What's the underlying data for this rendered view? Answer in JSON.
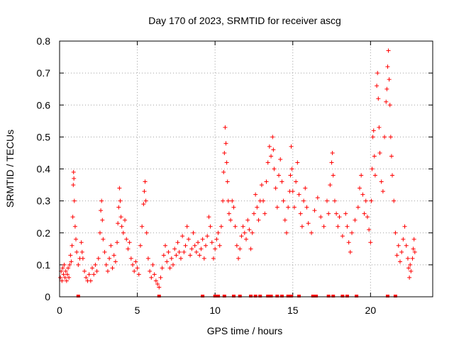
{
  "chart_data": {
    "type": "scatter",
    "title": "Day 170 of 2023, SRMTID for receiver ascg",
    "xlabel": "GPS time / hours",
    "ylabel": "SRMTID / TECUs",
    "xlim": [
      0,
      24
    ],
    "ylim": [
      0,
      0.8
    ],
    "xticks": [
      0,
      5,
      10,
      15,
      20
    ],
    "xtick_labels": [
      "0",
      "5",
      "10",
      "15",
      "20"
    ],
    "yticks": [
      0,
      0.1,
      0.2,
      0.3,
      0.4,
      0.5,
      0.6,
      0.7,
      0.8
    ],
    "ytick_labels": [
      "0",
      "0.1",
      "0.2",
      "0.3",
      "0.4",
      "0.5",
      "0.6",
      "0.7",
      "0.8"
    ],
    "grid": true,
    "marker": "+",
    "color": "#ff0000",
    "series": [
      {
        "name": "SRMTID",
        "points": [
          [
            0.05,
            0.06
          ],
          [
            0.1,
            0.08
          ],
          [
            0.15,
            0.05
          ],
          [
            0.2,
            0.09
          ],
          [
            0.25,
            0.07
          ],
          [
            0.3,
            0.1
          ],
          [
            0.35,
            0.06
          ],
          [
            0.4,
            0.08
          ],
          [
            0.45,
            0.05
          ],
          [
            0.5,
            0.07
          ],
          [
            0.55,
            0.09
          ],
          [
            0.6,
            0.06
          ],
          [
            0.65,
            0.1
          ],
          [
            0.7,
            0.13
          ],
          [
            0.75,
            0.11
          ],
          [
            0.8,
            0.16
          ],
          [
            0.85,
            0.25
          ],
          [
            0.88,
            0.35
          ],
          [
            0.9,
            0.39
          ],
          [
            0.92,
            0.37
          ],
          [
            0.95,
            0.3
          ],
          [
            1.0,
            0.22
          ],
          [
            1.05,
            0.18
          ],
          [
            1.1,
            0.14
          ],
          [
            1.2,
            0.1
          ],
          [
            1.3,
            0.12
          ],
          [
            1.4,
            0.17
          ],
          [
            1.45,
            0.14
          ],
          [
            1.5,
            0.12
          ],
          [
            1.6,
            0.08
          ],
          [
            1.7,
            0.06
          ],
          [
            1.8,
            0.05
          ],
          [
            1.9,
            0.07
          ],
          [
            2.0,
            0.05
          ],
          [
            2.1,
            0.09
          ],
          [
            2.2,
            0.07
          ],
          [
            2.3,
            0.1
          ],
          [
            2.4,
            0.08
          ],
          [
            2.5,
            0.12
          ],
          [
            2.6,
            0.2
          ],
          [
            2.65,
            0.27
          ],
          [
            2.7,
            0.3
          ],
          [
            2.75,
            0.24
          ],
          [
            2.8,
            0.18
          ],
          [
            2.9,
            0.14
          ],
          [
            3.0,
            0.1
          ],
          [
            3.1,
            0.08
          ],
          [
            3.2,
            0.12
          ],
          [
            3.3,
            0.16
          ],
          [
            3.4,
            0.09
          ],
          [
            3.5,
            0.13
          ],
          [
            3.6,
            0.11
          ],
          [
            3.7,
            0.17
          ],
          [
            3.75,
            0.23
          ],
          [
            3.8,
            0.28
          ],
          [
            3.85,
            0.34
          ],
          [
            3.9,
            0.3
          ],
          [
            3.95,
            0.25
          ],
          [
            4.0,
            0.22
          ],
          [
            4.1,
            0.2
          ],
          [
            4.2,
            0.24
          ],
          [
            4.3,
            0.18
          ],
          [
            4.4,
            0.15
          ],
          [
            4.5,
            0.17
          ],
          [
            4.6,
            0.12
          ],
          [
            4.7,
            0.1
          ],
          [
            4.8,
            0.08
          ],
          [
            4.9,
            0.11
          ],
          [
            5.0,
            0.09
          ],
          [
            5.1,
            0.07
          ],
          [
            5.2,
            0.16
          ],
          [
            5.3,
            0.22
          ],
          [
            5.4,
            0.29
          ],
          [
            5.45,
            0.33
          ],
          [
            5.5,
            0.36
          ],
          [
            5.55,
            0.3
          ],
          [
            5.6,
            0.2
          ],
          [
            5.7,
            0.12
          ],
          [
            5.8,
            0.08
          ],
          [
            5.9,
            0.06
          ],
          [
            6.0,
            0.1
          ],
          [
            6.1,
            0.07
          ],
          [
            6.2,
            0.05
          ],
          [
            6.3,
            0.04
          ],
          [
            6.4,
            0.03
          ],
          [
            6.5,
            0.06
          ],
          [
            6.6,
            0.09
          ],
          [
            6.7,
            0.13
          ],
          [
            6.8,
            0.16
          ],
          [
            6.9,
            0.11
          ],
          [
            7.0,
            0.14
          ],
          [
            7.1,
            0.09
          ],
          [
            7.2,
            0.12
          ],
          [
            7.3,
            0.1
          ],
          [
            7.4,
            0.15
          ],
          [
            7.5,
            0.13
          ],
          [
            7.6,
            0.17
          ],
          [
            7.7,
            0.14
          ],
          [
            7.8,
            0.12
          ],
          [
            7.9,
            0.19
          ],
          [
            8.0,
            0.14
          ],
          [
            8.1,
            0.16
          ],
          [
            8.2,
            0.22
          ],
          [
            8.3,
            0.18
          ],
          [
            8.4,
            0.13
          ],
          [
            8.5,
            0.15
          ],
          [
            8.6,
            0.2
          ],
          [
            8.7,
            0.16
          ],
          [
            8.8,
            0.14
          ],
          [
            8.9,
            0.17
          ],
          [
            9.0,
            0.13
          ],
          [
            9.1,
            0.15
          ],
          [
            9.2,
            0.18
          ],
          [
            9.3,
            0.12
          ],
          [
            9.4,
            0.16
          ],
          [
            9.5,
            0.19
          ],
          [
            9.6,
            0.25
          ],
          [
            9.7,
            0.22
          ],
          [
            9.8,
            0.17
          ],
          [
            9.9,
            0.12
          ],
          [
            10.0,
            0.15
          ],
          [
            10.1,
            0.18
          ],
          [
            10.2,
            0.2
          ],
          [
            10.3,
            0.16
          ],
          [
            10.4,
            0.22
          ],
          [
            10.5,
            0.3
          ],
          [
            10.55,
            0.39
          ],
          [
            10.6,
            0.45
          ],
          [
            10.65,
            0.53
          ],
          [
            10.7,
            0.48
          ],
          [
            10.75,
            0.42
          ],
          [
            10.8,
            0.36
          ],
          [
            10.85,
            0.3
          ],
          [
            10.9,
            0.26
          ],
          [
            11.0,
            0.24
          ],
          [
            11.1,
            0.3
          ],
          [
            11.2,
            0.28
          ],
          [
            11.3,
            0.22
          ],
          [
            11.4,
            0.16
          ],
          [
            11.5,
            0.12
          ],
          [
            11.6,
            0.15
          ],
          [
            11.7,
            0.19
          ],
          [
            11.8,
            0.22
          ],
          [
            11.9,
            0.2
          ],
          [
            12.0,
            0.18
          ],
          [
            12.1,
            0.24
          ],
          [
            12.2,
            0.21
          ],
          [
            12.3,
            0.15
          ],
          [
            12.4,
            0.2
          ],
          [
            12.5,
            0.26
          ],
          [
            12.6,
            0.32
          ],
          [
            12.7,
            0.28
          ],
          [
            12.8,
            0.24
          ],
          [
            12.9,
            0.3
          ],
          [
            13.0,
            0.35
          ],
          [
            13.1,
            0.3
          ],
          [
            13.2,
            0.26
          ],
          [
            13.3,
            0.36
          ],
          [
            13.4,
            0.42
          ],
          [
            13.5,
            0.47
          ],
          [
            13.6,
            0.44
          ],
          [
            13.7,
            0.5
          ],
          [
            13.75,
            0.46
          ],
          [
            13.8,
            0.4
          ],
          [
            13.9,
            0.34
          ],
          [
            14.0,
            0.28
          ],
          [
            14.1,
            0.38
          ],
          [
            14.2,
            0.43
          ],
          [
            14.3,
            0.36
          ],
          [
            14.4,
            0.3
          ],
          [
            14.5,
            0.24
          ],
          [
            14.6,
            0.2
          ],
          [
            14.7,
            0.28
          ],
          [
            14.8,
            0.33
          ],
          [
            14.85,
            0.38
          ],
          [
            14.9,
            0.47
          ],
          [
            14.95,
            0.4
          ],
          [
            15.0,
            0.33
          ],
          [
            15.1,
            0.28
          ],
          [
            15.2,
            0.36
          ],
          [
            15.3,
            0.42
          ],
          [
            15.4,
            0.32
          ],
          [
            15.5,
            0.26
          ],
          [
            15.6,
            0.22
          ],
          [
            15.7,
            0.3
          ],
          [
            15.8,
            0.34
          ],
          [
            15.9,
            0.28
          ],
          [
            16.0,
            0.23
          ],
          [
            16.2,
            0.2
          ],
          [
            16.4,
            0.27
          ],
          [
            16.6,
            0.31
          ],
          [
            16.8,
            0.25
          ],
          [
            17.0,
            0.22
          ],
          [
            17.2,
            0.3
          ],
          [
            17.3,
            0.26
          ],
          [
            17.4,
            0.35
          ],
          [
            17.5,
            0.42
          ],
          [
            17.55,
            0.45
          ],
          [
            17.6,
            0.38
          ],
          [
            17.7,
            0.3
          ],
          [
            17.8,
            0.26
          ],
          [
            17.9,
            0.22
          ],
          [
            18.0,
            0.25
          ],
          [
            18.2,
            0.19
          ],
          [
            18.4,
            0.26
          ],
          [
            18.5,
            0.22
          ],
          [
            18.6,
            0.17
          ],
          [
            18.7,
            0.14
          ],
          [
            18.8,
            0.2
          ],
          [
            19.0,
            0.24
          ],
          [
            19.2,
            0.28
          ],
          [
            19.3,
            0.34
          ],
          [
            19.4,
            0.38
          ],
          [
            19.5,
            0.32
          ],
          [
            19.6,
            0.26
          ],
          [
            19.7,
            0.3
          ],
          [
            19.8,
            0.25
          ],
          [
            19.9,
            0.21
          ],
          [
            20.0,
            0.17
          ],
          [
            20.05,
            0.3
          ],
          [
            20.1,
            0.4
          ],
          [
            20.15,
            0.5
          ],
          [
            20.2,
            0.52
          ],
          [
            20.25,
            0.44
          ],
          [
            20.3,
            0.38
          ],
          [
            20.4,
            0.66
          ],
          [
            20.45,
            0.7
          ],
          [
            20.5,
            0.62
          ],
          [
            20.55,
            0.53
          ],
          [
            20.6,
            0.45
          ],
          [
            20.7,
            0.36
          ],
          [
            20.8,
            0.33
          ],
          [
            20.9,
            0.5
          ],
          [
            21.0,
            0.61
          ],
          [
            21.05,
            0.65
          ],
          [
            21.1,
            0.72
          ],
          [
            21.15,
            0.77
          ],
          [
            21.2,
            0.68
          ],
          [
            21.25,
            0.6
          ],
          [
            21.3,
            0.5
          ],
          [
            21.35,
            0.44
          ],
          [
            21.4,
            0.38
          ],
          [
            21.5,
            0.3
          ],
          [
            21.6,
            0.2
          ],
          [
            21.7,
            0.13
          ],
          [
            21.8,
            0.16
          ],
          [
            21.9,
            0.11
          ],
          [
            22.0,
            0.14
          ],
          [
            22.1,
            0.18
          ],
          [
            22.2,
            0.22
          ],
          [
            22.3,
            0.16
          ],
          [
            22.4,
            0.12
          ],
          [
            22.45,
            0.09
          ],
          [
            22.5,
            0.06
          ],
          [
            22.55,
            0.1
          ],
          [
            22.6,
            0.08
          ],
          [
            22.7,
            0.12
          ],
          [
            22.75,
            0.15
          ],
          [
            22.8,
            0.18
          ],
          [
            22.85,
            0.14
          ]
        ]
      }
    ],
    "zero_line_points_x": [
      1.2,
      6.4,
      9.2,
      10.0,
      10.2,
      10.6,
      11.2,
      11.6,
      12.3,
      12.6,
      12.9,
      13.4,
      13.6,
      14.0,
      14.3,
      14.7,
      14.9,
      15.4,
      16.3,
      16.5,
      17.3,
      17.6,
      18.2,
      18.5,
      19.1,
      21.1,
      21.6
    ]
  }
}
